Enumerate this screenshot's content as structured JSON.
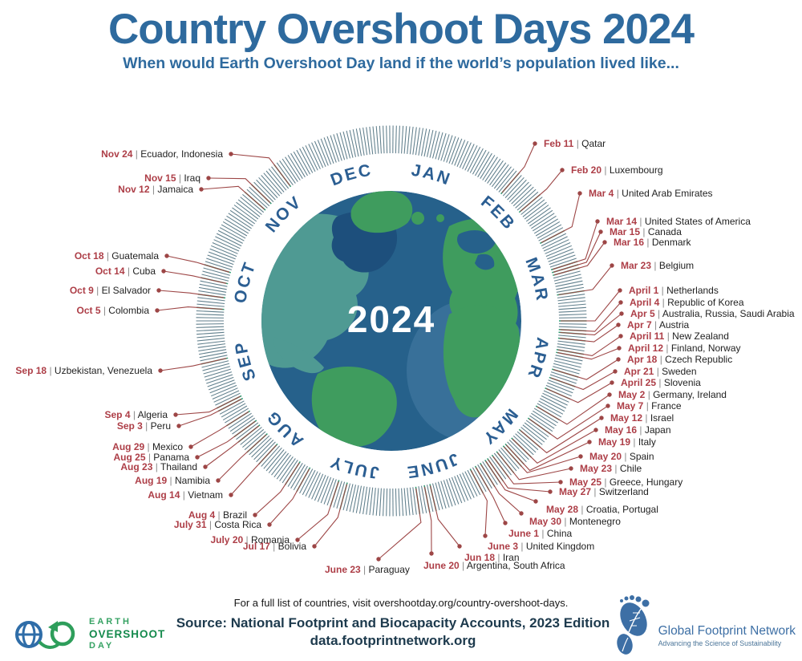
{
  "header": {
    "title": "Country Overshoot Days 2024",
    "subtitle": "When would Earth Overshoot Day land if the world’s population lived like..."
  },
  "wheel": {
    "year": "2024",
    "months": [
      "JAN",
      "FEB",
      "MAR",
      "APR",
      "MAY",
      "JUNE",
      "JULY",
      "AUG",
      "SEP",
      "OCT",
      "NOV",
      "DEC"
    ]
  },
  "chart_data": {
    "type": "radial-calendar",
    "title": "Country Overshoot Days 2024",
    "subtitle": "When would Earth Overshoot Day land if the world’s population lived like...",
    "year": "2024",
    "days_in_year": 366,
    "entries": [
      {
        "date": "Feb 11",
        "countries": "Qatar",
        "day": 42,
        "dot": [
          667,
          179
        ],
        "side": "R"
      },
      {
        "date": "Feb 20",
        "countries": "Luxembourg",
        "day": 51,
        "dot": [
          701,
          212
        ],
        "side": "R"
      },
      {
        "date": "Mar 4",
        "countries": "United Arab Emirates",
        "day": 64,
        "dot": [
          723,
          241
        ],
        "side": "R"
      },
      {
        "date": "Mar 14",
        "countries": "United States of America",
        "day": 74,
        "dot": [
          745,
          276
        ],
        "side": "R"
      },
      {
        "date": "Mar 15",
        "countries": "Canada",
        "day": 75,
        "dot": [
          749,
          289
        ],
        "side": "R"
      },
      {
        "date": "Mar 16",
        "countries": "Denmark",
        "day": 76,
        "dot": [
          754,
          302
        ],
        "side": "R"
      },
      {
        "date": "Mar 23",
        "countries": "Belgium",
        "day": 83,
        "dot": [
          763,
          331
        ],
        "side": "R"
      },
      {
        "date": "April 1",
        "countries": "Netherlands",
        "day": 92,
        "dot": [
          773,
          362
        ],
        "side": "R"
      },
      {
        "date": "April 4",
        "countries": "Republic of Korea",
        "day": 95,
        "dot": [
          774,
          377
        ],
        "side": "R"
      },
      {
        "date": "Apr 5",
        "countries": "Australia, Russia, Saudi Arabia",
        "day": 96,
        "dot": [
          775,
          391
        ],
        "side": "R"
      },
      {
        "date": "Apr 7",
        "countries": "Austria",
        "day": 98,
        "dot": [
          771,
          405
        ],
        "side": "R"
      },
      {
        "date": "April 11",
        "countries": "New Zealand",
        "day": 102,
        "dot": [
          774,
          419
        ],
        "side": "R"
      },
      {
        "date": "April 12",
        "countries": "Finland, Norway",
        "day": 103,
        "dot": [
          772,
          434
        ],
        "side": "R"
      },
      {
        "date": "Apr 18",
        "countries": "Czech Republic",
        "day": 109,
        "dot": [
          771,
          448
        ],
        "side": "R"
      },
      {
        "date": "Apr 21",
        "countries": "Sweden",
        "day": 112,
        "dot": [
          767,
          463
        ],
        "side": "R"
      },
      {
        "date": "April 25",
        "countries": "Slovenia",
        "day": 116,
        "dot": [
          763,
          477
        ],
        "side": "R"
      },
      {
        "date": "May 2",
        "countries": "Germany, Ireland",
        "day": 123,
        "dot": [
          760,
          492
        ],
        "side": "R"
      },
      {
        "date": "May 7",
        "countries": "France",
        "day": 128,
        "dot": [
          758,
          506
        ],
        "side": "R"
      },
      {
        "date": "May 12",
        "countries": "Israel",
        "day": 133,
        "dot": [
          750,
          521
        ],
        "side": "R"
      },
      {
        "date": "May 16",
        "countries": "Japan",
        "day": 137,
        "dot": [
          743,
          536
        ],
        "side": "R"
      },
      {
        "date": "May 19",
        "countries": "Italy",
        "day": 140,
        "dot": [
          735,
          551
        ],
        "side": "R"
      },
      {
        "date": "May 20",
        "countries": "Spain",
        "day": 141,
        "dot": [
          724,
          569
        ],
        "side": "R"
      },
      {
        "date": "May 23",
        "countries": "Chile",
        "day": 144,
        "dot": [
          712,
          584
        ],
        "side": "R"
      },
      {
        "date": "May 25",
        "countries": "Greece, Hungary",
        "day": 146,
        "dot": [
          699,
          601
        ],
        "side": "R"
      },
      {
        "date": "May 27",
        "countries": "Switzerland",
        "day": 148,
        "dot": [
          686,
          613
        ],
        "side": "R"
      },
      {
        "date": "May 28",
        "countries": "Croatia, Portugal",
        "day": 149,
        "dot": [
          668,
          625
        ],
        "side": "R",
        "text": [
          681,
          639
        ]
      },
      {
        "date": "May 30",
        "countries": "Montenegro",
        "day": 151,
        "dot": [
          650,
          640
        ],
        "side": "R",
        "text": [
          660,
          654
        ]
      },
      {
        "date": "June 1",
        "countries": "China",
        "day": 153,
        "dot": [
          630,
          652
        ],
        "side": "R",
        "text": [
          634,
          669
        ]
      },
      {
        "date": "June 3",
        "countries": "United Kingdom",
        "day": 155,
        "dot": [
          605,
          668
        ],
        "side": "R",
        "text": [
          608,
          685
        ]
      },
      {
        "date": "Jun 18",
        "countries": "Iran",
        "day": 170,
        "dot": [
          573,
          681
        ],
        "side": "R",
        "text": [
          579,
          699
        ]
      },
      {
        "date": "June 20",
        "countries": "Argentina, South Africa",
        "day": 172,
        "dot": [
          538,
          690
        ],
        "side": "R",
        "text": [
          528,
          709
        ]
      },
      {
        "date": "June 23",
        "countries": "Paraguay",
        "day": 175,
        "dot": [
          472,
          697
        ],
        "side": "R",
        "text": [
          405,
          714
        ]
      },
      {
        "date": "Jul 17",
        "countries": "Bolivia",
        "day": 199,
        "dot": [
          392,
          681
        ],
        "side": "L"
      },
      {
        "date": "July 20",
        "countries": "Romania",
        "day": 202,
        "dot": [
          371,
          673
        ],
        "side": "L"
      },
      {
        "date": "July 31",
        "countries": "Costa Rica",
        "day": 213,
        "dot": [
          336,
          654
        ],
        "side": "L"
      },
      {
        "date": "Aug 4",
        "countries": "Brazil",
        "day": 217,
        "dot": [
          318,
          642
        ],
        "side": "L"
      },
      {
        "date": "Aug 14",
        "countries": "Vietnam",
        "day": 227,
        "dot": [
          288,
          617
        ],
        "side": "L"
      },
      {
        "date": "Aug 19",
        "countries": "Namibia",
        "day": 232,
        "dot": [
          272,
          599
        ],
        "side": "L"
      },
      {
        "date": "Aug 23",
        "countries": "Thailand",
        "day": 236,
        "dot": [
          256,
          582
        ],
        "side": "L"
      },
      {
        "date": "Aug 25",
        "countries": "Panama",
        "day": 238,
        "dot": [
          246,
          570
        ],
        "side": "L"
      },
      {
        "date": "Aug 29",
        "countries": "Mexico",
        "day": 242,
        "dot": [
          238,
          557
        ],
        "side": "L"
      },
      {
        "date": "Sep 3",
        "countries": "Peru",
        "day": 247,
        "dot": [
          223,
          531
        ],
        "side": "L"
      },
      {
        "date": "Sep 4",
        "countries": "Algeria",
        "day": 248,
        "dot": [
          219,
          517
        ],
        "side": "L"
      },
      {
        "date": "Sep 18",
        "countries": "Uzbekistan, Venezuela",
        "day": 262,
        "dot": [
          200,
          462
        ],
        "side": "L"
      },
      {
        "date": "Oct 5",
        "countries": "Colombia",
        "day": 279,
        "dot": [
          196,
          387
        ],
        "side": "L"
      },
      {
        "date": "Oct 9",
        "countries": "El Salvador",
        "day": 283,
        "dot": [
          198,
          362
        ],
        "side": "L"
      },
      {
        "date": "Oct 14",
        "countries": "Cuba",
        "day": 288,
        "dot": [
          204,
          338
        ],
        "side": "L"
      },
      {
        "date": "Oct 18",
        "countries": "Guatemala",
        "day": 292,
        "dot": [
          208,
          319
        ],
        "side": "L"
      },
      {
        "date": "Nov 12",
        "countries": "Jamaica",
        "day": 317,
        "dot": [
          251,
          236
        ],
        "side": "L"
      },
      {
        "date": "Nov 15",
        "countries": "Iraq",
        "day": 320,
        "dot": [
          260,
          222
        ],
        "side": "L"
      },
      {
        "date": "Nov 24",
        "countries": "Ecuador, Indonesia",
        "day": 329,
        "dot": [
          288,
          192
        ],
        "side": "L"
      }
    ]
  },
  "footer": {
    "note": "For a full list of countries, visit overshootday.org/country-overshoot-days.",
    "source_line1": "Source: National Footprint and Biocapacity Accounts, 2023 Edition",
    "source_line2": "data.footprintnetwork.org",
    "eod_logo": {
      "line1": "EARTH",
      "line2": "OVERSHOOT",
      "line3": "DAY"
    },
    "gfn_logo": {
      "name": "Global Footprint Network",
      "tagline": "Advancing the Science of Sustainability"
    }
  },
  "colors": {
    "title_blue": "#2e6a9e",
    "month_blue": "#2b5e92",
    "date_red": "#ad3e47",
    "line_red": "#9d4646",
    "tick_gray": "#5f7e8b",
    "tick_green": "#2f9b72",
    "ocean": "#26618b",
    "land_green": "#3f9c5e",
    "land_teal": "#4f9a93",
    "land_dark": "#1d4f7c",
    "navy": "#1d3a4d",
    "logo_green": "#2e9e5b",
    "logo_blue": "#3d6fa5"
  }
}
